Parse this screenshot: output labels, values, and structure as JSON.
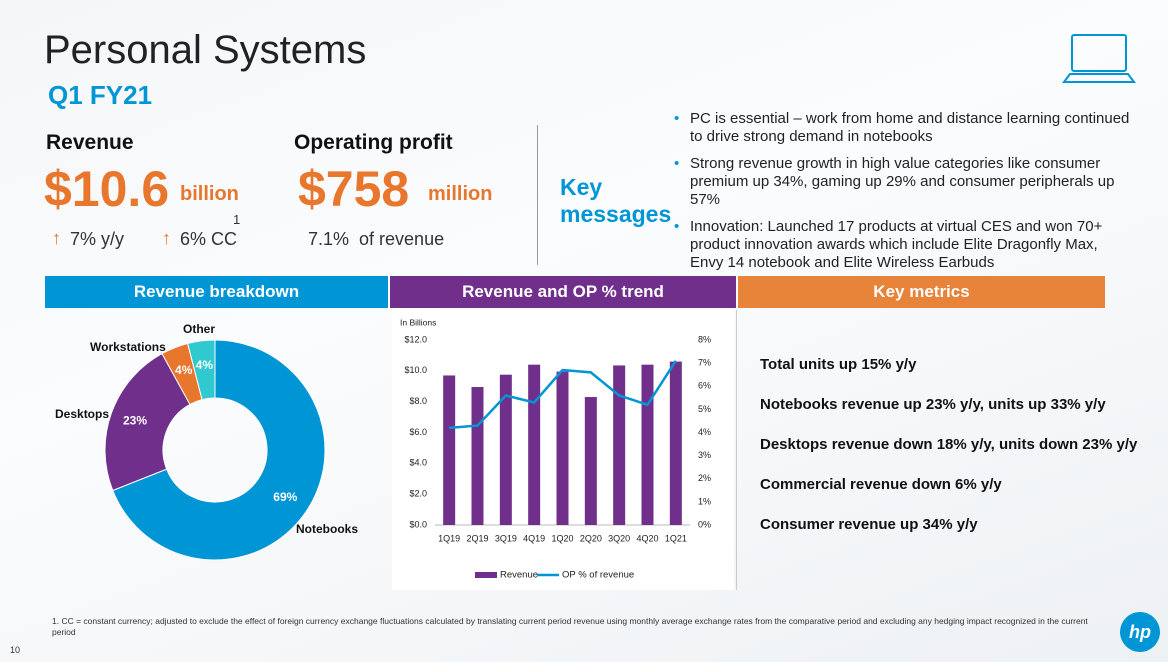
{
  "header": {
    "title": "Personal Systems",
    "subtitle": "Q1 FY21"
  },
  "revenue": {
    "label": "Revenue",
    "value": "$10.6",
    "unit": "billion",
    "growth": "7% y/y",
    "cc_growth": "6% CC",
    "footnote_ref": "1"
  },
  "operating_profit": {
    "label": "Operating profit",
    "value": "$758",
    "unit": "million",
    "margin": "7.1%  of revenue"
  },
  "key_messages": {
    "title": [
      "Key",
      "messages"
    ],
    "bullets": [
      "PC is essential – work from home and distance learning continued to drive strong demand in notebooks",
      "Strong revenue growth in high value categories like consumer premium up 34%, gaming up 29% and consumer peripherals up 57%",
      "Innovation: Launched 17 products at virtual CES and won 70+ product innovation awards which include Elite Dragonfly Max, Envy 14 notebook and Elite Wireless Earbuds"
    ]
  },
  "sections": [
    "Revenue breakdown",
    "Revenue and OP % trend",
    "Key metrics"
  ],
  "key_metrics": [
    "Total units up 15% y/y",
    "Notebooks revenue up 23% y/y, units up 33% y/y",
    "Desktops revenue down 18% y/y, units down 23% y/y",
    "Commercial revenue down 6% y/y",
    "Consumer revenue up 34% y/y"
  ],
  "footnote": "1.  CC = constant currency; adjusted to exclude the effect of foreign currency exchange fluctuations calculated by translating current period revenue using monthly average exchange rates from the comparative period and excluding any hedging impact recognized in the current period",
  "page_number": "10",
  "logo": "hp",
  "chart_data": [
    {
      "type": "donut",
      "categories": [
        "Notebooks",
        "Desktops",
        "Workstations",
        "Other"
      ],
      "values": [
        69,
        23,
        4,
        4
      ],
      "value_labels": [
        "69%",
        "23%",
        "4%",
        "4%"
      ],
      "colors": [
        "#0096d6",
        "#702f8a",
        "#e8762d",
        "#30c9d0"
      ]
    },
    {
      "type": "bar-line",
      "axis_label": "In Billions",
      "categories": [
        "1Q19",
        "2Q19",
        "3Q19",
        "4Q19",
        "1Q20",
        "2Q20",
        "3Q20",
        "4Q20",
        "1Q21"
      ],
      "series": [
        {
          "name": "Revenue",
          "color": "#702f8a",
          "type": "bar",
          "values": [
            9.7,
            8.95,
            9.75,
            10.4,
            9.95,
            8.3,
            10.35,
            10.4,
            10.6
          ]
        },
        {
          "name": "OP % of revenue",
          "color": "#0096d6",
          "type": "line",
          "axis": "y2",
          "values": [
            4.2,
            4.3,
            5.6,
            5.3,
            6.7,
            6.6,
            5.6,
            5.2,
            7.1
          ]
        }
      ],
      "ylim": [
        0,
        12
      ],
      "yticks": [
        {
          "value": 0,
          "label": "$0.0"
        },
        {
          "value": 2,
          "label": "$2.0"
        },
        {
          "value": 4,
          "label": "$4.0"
        },
        {
          "value": 6,
          "label": "$6.0"
        },
        {
          "value": 8,
          "label": "$8.0"
        },
        {
          "value": 10,
          "label": "$10.0"
        },
        {
          "value": 12,
          "label": "$12.0"
        }
      ],
      "y2lim": [
        0,
        8
      ],
      "y2ticks": [
        {
          "value": 0,
          "label": "0%"
        },
        {
          "value": 1,
          "label": "1%"
        },
        {
          "value": 2,
          "label": "2%"
        },
        {
          "value": 3,
          "label": "3%"
        },
        {
          "value": 4,
          "label": "4%"
        },
        {
          "value": 5,
          "label": "5%"
        },
        {
          "value": 6,
          "label": "6%"
        },
        {
          "value": 7,
          "label": "7%"
        },
        {
          "value": 8,
          "label": "8%"
        }
      ],
      "grid": false
    }
  ]
}
